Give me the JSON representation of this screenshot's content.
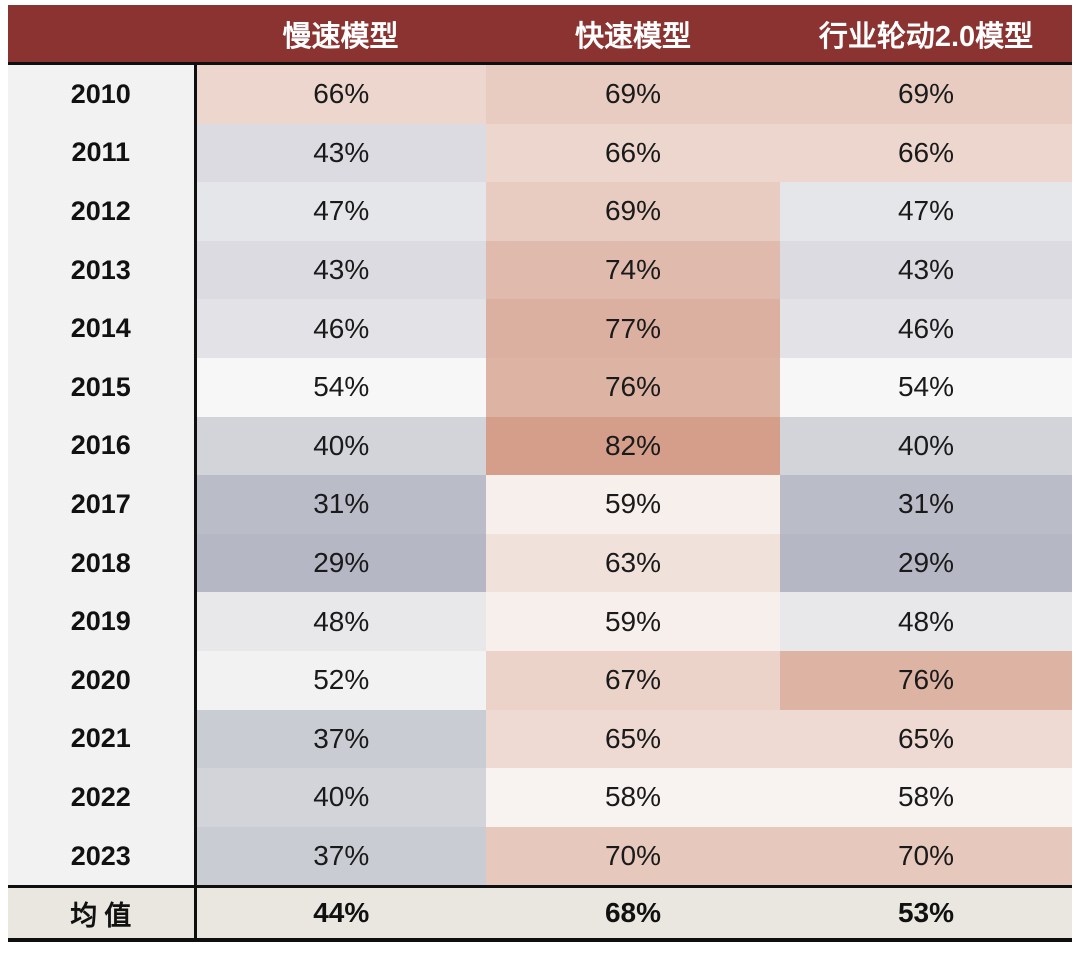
{
  "table": {
    "header": {
      "year_col_label": "",
      "columns": [
        "慢速模型",
        "快速模型",
        "行业轮动2.0模型"
      ]
    },
    "rows": [
      {
        "year": "2010",
        "values": [
          "66%",
          "69%",
          "69%"
        ]
      },
      {
        "year": "2011",
        "values": [
          "43%",
          "66%",
          "66%"
        ]
      },
      {
        "year": "2012",
        "values": [
          "47%",
          "69%",
          "47%"
        ]
      },
      {
        "year": "2013",
        "values": [
          "43%",
          "74%",
          "43%"
        ]
      },
      {
        "year": "2014",
        "values": [
          "46%",
          "77%",
          "46%"
        ]
      },
      {
        "year": "2015",
        "values": [
          "54%",
          "76%",
          "54%"
        ]
      },
      {
        "year": "2016",
        "values": [
          "40%",
          "82%",
          "40%"
        ]
      },
      {
        "year": "2017",
        "values": [
          "31%",
          "59%",
          "31%"
        ]
      },
      {
        "year": "2018",
        "values": [
          "29%",
          "63%",
          "29%"
        ]
      },
      {
        "year": "2019",
        "values": [
          "48%",
          "59%",
          "48%"
        ]
      },
      {
        "year": "2020",
        "values": [
          "52%",
          "67%",
          "76%"
        ]
      },
      {
        "year": "2021",
        "values": [
          "37%",
          "65%",
          "65%"
        ]
      },
      {
        "year": "2022",
        "values": [
          "40%",
          "58%",
          "58%"
        ]
      },
      {
        "year": "2023",
        "values": [
          "37%",
          "70%",
          "70%"
        ]
      }
    ],
    "summary": {
      "label": "均值",
      "values": [
        "44%",
        "68%",
        "53%"
      ]
    }
  },
  "chart_data": {
    "type": "heatmap",
    "title": "",
    "columns": [
      "慢速模型",
      "快速模型",
      "行业轮动2.0模型"
    ],
    "categories": [
      "2010",
      "2011",
      "2012",
      "2013",
      "2014",
      "2015",
      "2016",
      "2017",
      "2018",
      "2019",
      "2020",
      "2021",
      "2022",
      "2023"
    ],
    "series": [
      {
        "name": "慢速模型",
        "values": [
          66,
          43,
          47,
          43,
          46,
          54,
          40,
          31,
          29,
          48,
          52,
          37,
          40,
          37
        ],
        "mean": 44
      },
      {
        "name": "快速模型",
        "values": [
          69,
          66,
          69,
          74,
          77,
          76,
          82,
          59,
          63,
          59,
          67,
          65,
          58,
          70
        ],
        "mean": 68
      },
      {
        "name": "行业轮动2.0模型",
        "values": [
          69,
          66,
          47,
          43,
          46,
          54,
          40,
          31,
          29,
          48,
          76,
          65,
          58,
          70
        ],
        "mean": 53
      }
    ],
    "summary_row_label": "均值",
    "value_unit": "%",
    "color_scale": {
      "min_value": 29,
      "mid_value": 55.5,
      "max_value": 82,
      "min_color": "#b5b8c4",
      "mid_color": "#fcfbfa",
      "max_color": "#d49e8b"
    }
  },
  "colors": {
    "header_bg": "#8a3331",
    "header_text": "#ffffff",
    "year_col_bg": "#f2f2f2",
    "summary_bg": "#eae7e0",
    "border": "#0f0f0f",
    "scale_low": "#b5b8c4",
    "scale_mid": "#fcfbfa",
    "scale_high": "#d49e8b",
    "scale_min_value": 29,
    "scale_max_value": 82
  }
}
